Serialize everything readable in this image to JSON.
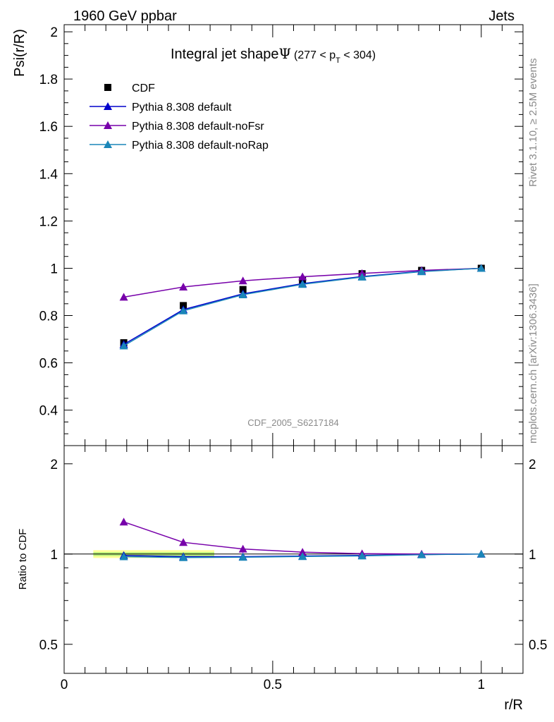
{
  "header": {
    "left": "1960 GeV ppbar",
    "right": "Jets"
  },
  "side_text": {
    "top": "Rivet 3.1.10, ≥ 2.5M events",
    "bottom": "mcplots.cern.ch [arXiv:1306.3436]"
  },
  "chart_data": [
    {
      "type": "line",
      "title": "Integral jet shape",
      "title_symbol": "Ψ",
      "title_range": {
        "pre": "(277 < p",
        "sub": "T",
        "post": " < 304)"
      },
      "watermark": "CDF_2005_S6217184",
      "ylabel": "Psi(r/R)",
      "xlim": [
        0,
        1.1
      ],
      "ylim": [
        0.25,
        2.03
      ],
      "y_ticks": [
        "0.4",
        "0.6",
        "0.8",
        "1",
        "1.2",
        "1.4",
        "1.6",
        "1.8",
        "2"
      ],
      "grid": false,
      "legend_position": "top-left",
      "x": [
        0.1429,
        0.2857,
        0.4286,
        0.5714,
        0.7143,
        0.8571,
        1.0
      ],
      "series": [
        {
          "name": "CDF",
          "values": [
            0.685,
            0.842,
            0.91,
            0.95,
            0.977,
            0.991,
            1.0
          ],
          "color": "#000000",
          "marker": "square",
          "line": false
        },
        {
          "name": "Pythia 8.308 default",
          "values": [
            0.678,
            0.825,
            0.892,
            0.935,
            0.965,
            0.987,
            1.0
          ],
          "color": "#0000cc",
          "marker": "triangle",
          "line": true
        },
        {
          "name": "Pythia 8.308 default-noFsr",
          "values": [
            0.878,
            0.921,
            0.947,
            0.964,
            0.978,
            0.991,
            1.0
          ],
          "color": "#7700aa",
          "marker": "triangle",
          "line": true
        },
        {
          "name": "Pythia 8.308 default-noRap",
          "values": [
            0.672,
            0.82,
            0.888,
            0.932,
            0.963,
            0.986,
            1.0
          ],
          "color": "#1a86b8",
          "marker": "triangle",
          "line": true
        }
      ]
    },
    {
      "type": "line",
      "xlabel": "r/R",
      "ylabel": "Ratio to CDF",
      "xlim": [
        0,
        1.1
      ],
      "x_ticks": [
        "0",
        "0.5",
        "1"
      ],
      "y_ticks": [
        "0.5",
        "1",
        "2"
      ],
      "y_scale": "log",
      "ylim": [
        0.4,
        2.3
      ],
      "band": {
        "x": [
          0.07,
          0.36
        ],
        "low": 0.97,
        "high": 1.03,
        "inner_low": 0.985,
        "inner_high": 1.015,
        "color": "#ffff99",
        "inner_color": "#b9f07a"
      },
      "x": [
        0.1429,
        0.2857,
        0.4286,
        0.5714,
        0.7143,
        0.8571,
        1.0
      ],
      "series": [
        {
          "name": "Pythia 8.308 default",
          "values": [
            0.99,
            0.98,
            0.98,
            0.985,
            0.99,
            0.996,
            1.0
          ],
          "color": "#0000cc"
        },
        {
          "name": "Pythia 8.308 default-noFsr",
          "values": [
            1.28,
            1.094,
            1.04,
            1.015,
            1.003,
            1.0,
            1.0
          ],
          "color": "#7700aa"
        },
        {
          "name": "Pythia 8.308 default-noRap",
          "values": [
            0.98,
            0.974,
            0.976,
            0.981,
            0.986,
            0.995,
            1.0
          ],
          "color": "#1a86b8"
        }
      ]
    }
  ]
}
